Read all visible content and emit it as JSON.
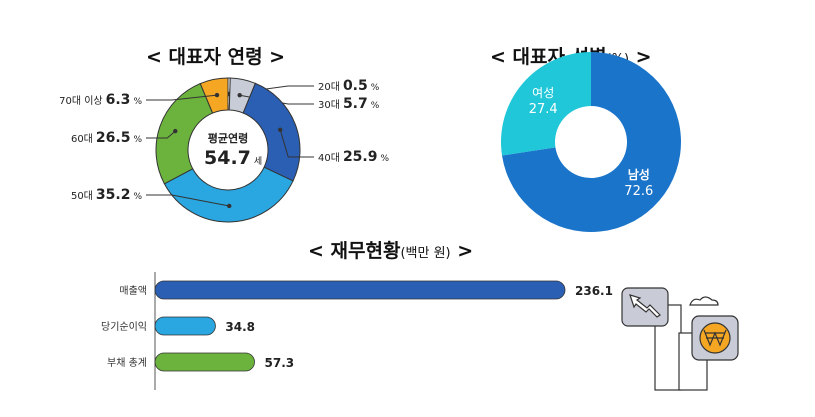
{
  "chart_data": [
    {
      "type": "pie",
      "title": "< 대표자 연령 >",
      "center_label": "평균연령",
      "center_value": "54.7",
      "center_unit": "세",
      "slices": [
        {
          "name": "20대",
          "value": 0.5,
          "label": "0.5",
          "color": "#ffffff"
        },
        {
          "name": "30대",
          "value": 5.7,
          "label": "5.7",
          "color": "#c8ccd6"
        },
        {
          "name": "40대",
          "value": 25.9,
          "label": "25.9",
          "color": "#2b5fb4"
        },
        {
          "name": "50대",
          "value": 35.2,
          "label": "35.2",
          "color": "#2aa6e0"
        },
        {
          "name": "60대",
          "value": 26.5,
          "label": "26.5",
          "color": "#6cb33e"
        },
        {
          "name": "70대 이상",
          "value": 6.3,
          "label": "6.3",
          "color": "#f5a623"
        }
      ],
      "unit": "%"
    },
    {
      "type": "pie",
      "title": "< 대표자 성별",
      "title_unit": "(%)",
      "title_end": " >",
      "slices": [
        {
          "name": "남성",
          "value": 72.6,
          "label": "72.6",
          "color": "#1a74c9"
        },
        {
          "name": "여성",
          "value": 27.4,
          "label": "27.4",
          "color": "#1fc7d8"
        }
      ]
    },
    {
      "type": "bar",
      "title": "< 재무현황",
      "title_unit": "(백만 원)",
      "title_end": " >",
      "categories": [
        "매출액",
        "당기순이익",
        "부채 총계"
      ],
      "values": [
        236.1,
        34.8,
        57.3
      ],
      "labels": [
        "236.1",
        "34.8",
        "57.3"
      ],
      "colors": [
        "#2b5fb4",
        "#2aa6e0",
        "#6cb33e"
      ],
      "xlim": [
        0,
        236.1
      ]
    }
  ]
}
